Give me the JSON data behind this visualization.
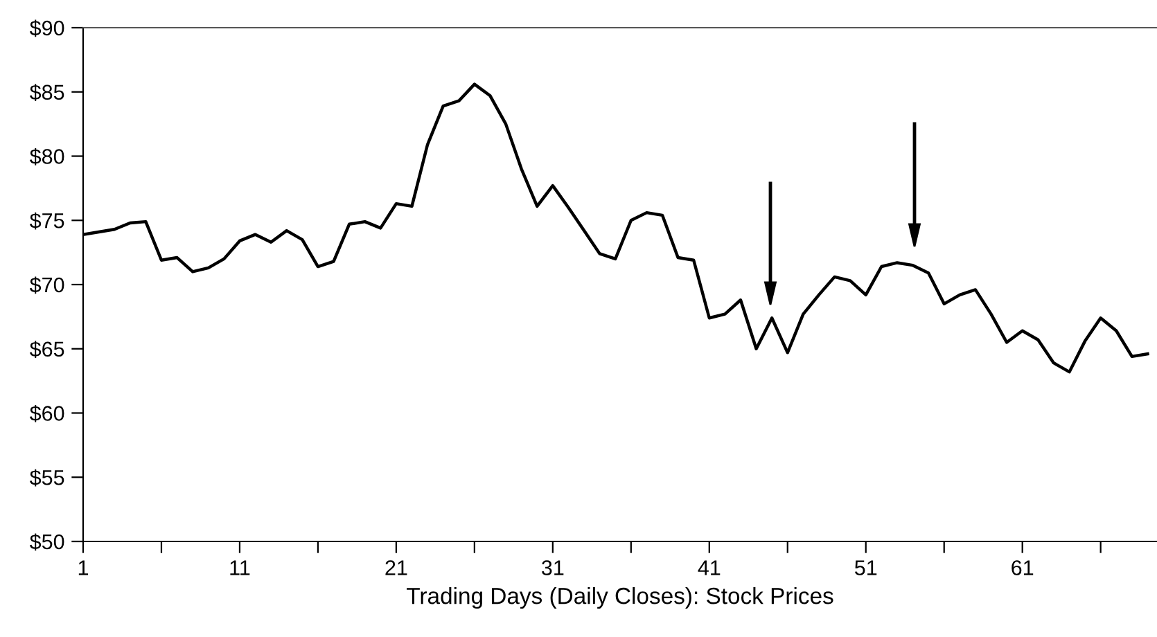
{
  "chart_data": {
    "type": "line",
    "xlabel": "Trading Days (Daily Closes): Stock Prices",
    "x": [
      1,
      2,
      3,
      4,
      5,
      6,
      7,
      8,
      9,
      10,
      11,
      12,
      13,
      14,
      15,
      16,
      17,
      18,
      19,
      20,
      21,
      22,
      23,
      24,
      25,
      26,
      27,
      28,
      29,
      30,
      31,
      32,
      33,
      34,
      35,
      36,
      37,
      38,
      39,
      40,
      41,
      42,
      43,
      44,
      45,
      46,
      47,
      48,
      49,
      50,
      51,
      52,
      53,
      54,
      55,
      56,
      57,
      58,
      59,
      60,
      61,
      62,
      63,
      64,
      65,
      66,
      67,
      68,
      69
    ],
    "series": [
      {
        "color": "#000000",
        "values": [
          73.9,
          74.1,
          74.3,
          74.8,
          74.9,
          71.9,
          72.1,
          71.0,
          71.3,
          72.0,
          73.4,
          73.9,
          73.3,
          74.2,
          73.5,
          71.4,
          71.8,
          74.7,
          74.9,
          74.4,
          76.3,
          76.1,
          80.9,
          83.9,
          84.3,
          85.6,
          84.7,
          82.5,
          79.0,
          76.1,
          77.7,
          76.0,
          74.2,
          72.4,
          72.0,
          75.0,
          75.6,
          75.4,
          72.1,
          71.9,
          67.4,
          67.7,
          68.8,
          65.0,
          67.4,
          64.7,
          67.7,
          69.2,
          70.6,
          70.3,
          69.2,
          71.4,
          71.7,
          71.5,
          70.9,
          68.5,
          69.2,
          69.6,
          67.7,
          65.5,
          66.4,
          65.7,
          63.9,
          63.2,
          65.6,
          67.4,
          66.4,
          64.4,
          64.6
        ]
      }
    ],
    "xlim": [
      1,
      69.6
    ],
    "xticks": [
      1,
      {
        "value": 6,
        "label": null
      },
      11,
      {
        "value": 16,
        "label": null
      },
      21,
      {
        "value": 26,
        "label": null
      },
      31,
      {
        "value": 36,
        "label": null
      },
      41,
      {
        "value": 46,
        "label": null
      },
      51,
      {
        "value": 56,
        "label": null
      },
      61,
      {
        "value": 66,
        "label": null
      }
    ],
    "ylim": [
      50,
      90
    ],
    "yticks": [
      {
        "value": 50,
        "label": "$50"
      },
      {
        "value": 55,
        "label": "$55"
      },
      {
        "value": 60,
        "label": "$60"
      },
      {
        "value": 65,
        "label": "$65"
      },
      {
        "value": 70,
        "label": "$70"
      },
      {
        "value": 75,
        "label": "$75"
      },
      {
        "value": 80,
        "label": "$80"
      },
      {
        "value": 85,
        "label": "$85"
      },
      {
        "value": 90,
        "label": "$90"
      }
    ],
    "grid": false,
    "marker": "none",
    "line_style": "solid"
  }
}
